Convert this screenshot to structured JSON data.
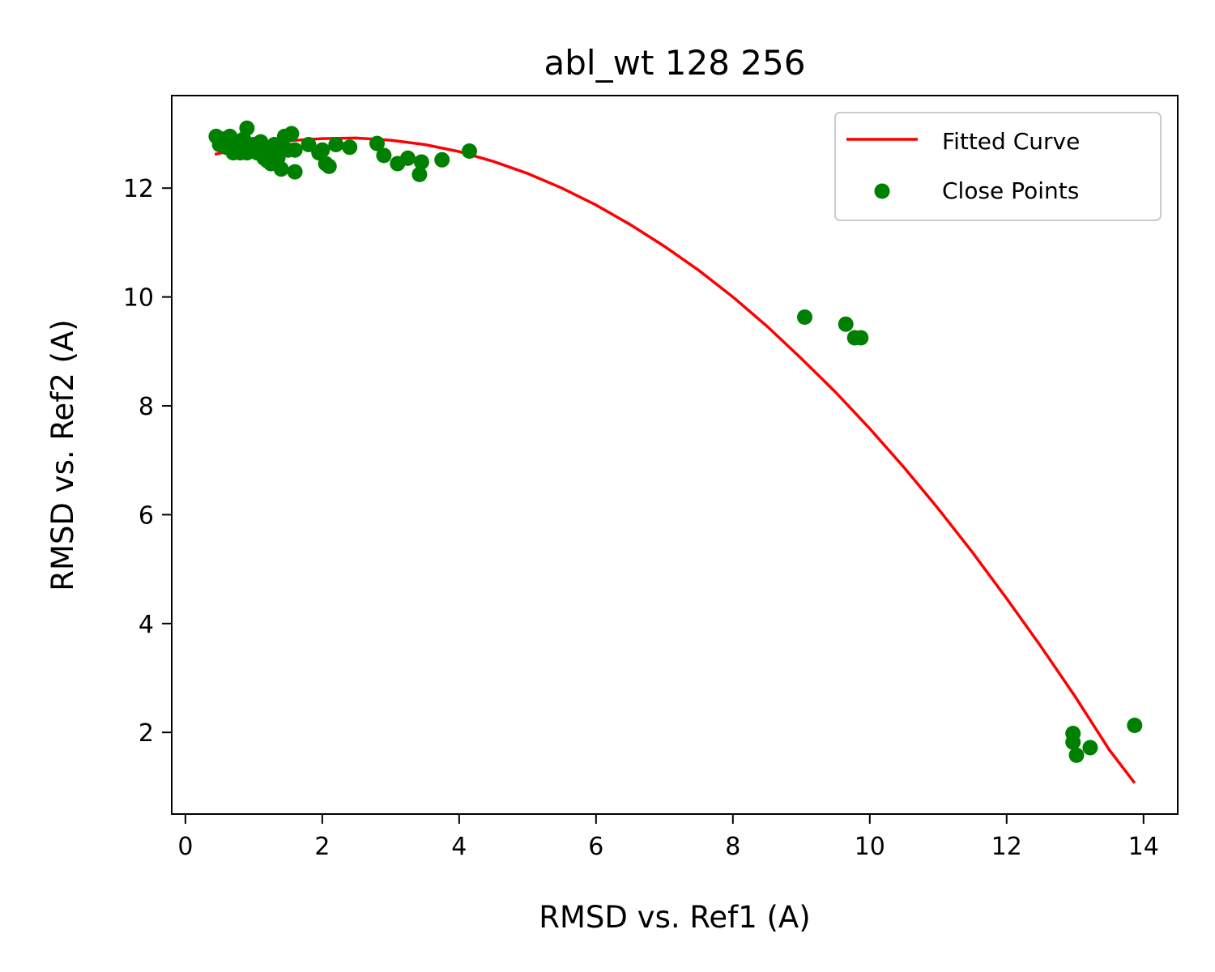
{
  "chart_data": {
    "type": "scatter",
    "title": "abl_wt 128 256",
    "xlabel": "RMSD vs. Ref1 (A)",
    "ylabel": "RMSD vs. Ref2 (A)",
    "xlim": [
      -0.2,
      14.5
    ],
    "ylim": [
      0.5,
      13.7
    ],
    "xticks": [
      0,
      2,
      4,
      6,
      8,
      10,
      12,
      14
    ],
    "yticks": [
      2,
      4,
      6,
      8,
      10,
      12
    ],
    "grid": false,
    "legend_position": "top-right",
    "series": [
      {
        "name": "Fitted Curve",
        "kind": "line",
        "color": "#ff0000",
        "x": [
          0.43,
          1.0,
          1.5,
          2.0,
          2.5,
          3.0,
          3.5,
          4.0,
          4.5,
          5.0,
          5.5,
          6.0,
          6.5,
          7.0,
          7.5,
          8.0,
          8.5,
          9.0,
          9.5,
          10.0,
          10.5,
          11.0,
          11.5,
          12.0,
          12.5,
          13.0,
          13.5,
          13.87
        ],
        "y": [
          12.62,
          12.78,
          12.87,
          12.91,
          12.92,
          12.88,
          12.8,
          12.67,
          12.49,
          12.27,
          12.0,
          11.69,
          11.33,
          10.93,
          10.49,
          10.0,
          9.46,
          8.87,
          8.25,
          7.58,
          6.87,
          6.11,
          5.31,
          4.46,
          3.58,
          2.66,
          1.68,
          1.07
        ]
      },
      {
        "name": "Close Points",
        "kind": "scatter",
        "color": "#008000",
        "x": [
          0.45,
          0.5,
          0.55,
          0.6,
          0.65,
          0.7,
          0.75,
          0.8,
          0.85,
          0.9,
          0.95,
          1.0,
          1.05,
          1.1,
          1.15,
          1.2,
          1.25,
          1.3,
          1.35,
          1.4,
          1.45,
          1.5,
          1.55,
          1.6,
          0.7,
          0.9,
          1.2,
          1.4,
          1.6,
          1.8,
          1.95,
          2.0,
          2.05,
          2.1,
          2.2,
          2.4,
          2.8,
          2.9,
          3.1,
          3.25,
          3.45,
          3.42,
          3.75,
          4.15,
          9.05,
          9.65,
          9.78,
          9.87,
          12.97,
          12.97,
          13.02,
          13.22,
          13.87
        ],
        "y": [
          12.95,
          12.8,
          12.9,
          12.75,
          12.95,
          12.8,
          12.85,
          12.65,
          12.9,
          13.1,
          12.7,
          12.8,
          12.65,
          12.85,
          12.55,
          12.7,
          12.45,
          12.8,
          12.55,
          12.35,
          12.95,
          12.7,
          13.0,
          12.3,
          12.65,
          12.65,
          12.5,
          12.75,
          12.7,
          12.8,
          12.65,
          12.7,
          12.45,
          12.4,
          12.8,
          12.75,
          12.82,
          12.6,
          12.45,
          12.55,
          12.48,
          12.25,
          12.52,
          12.68,
          9.63,
          9.5,
          9.25,
          9.25,
          1.98,
          1.82,
          1.58,
          1.72,
          2.13
        ]
      }
    ]
  }
}
